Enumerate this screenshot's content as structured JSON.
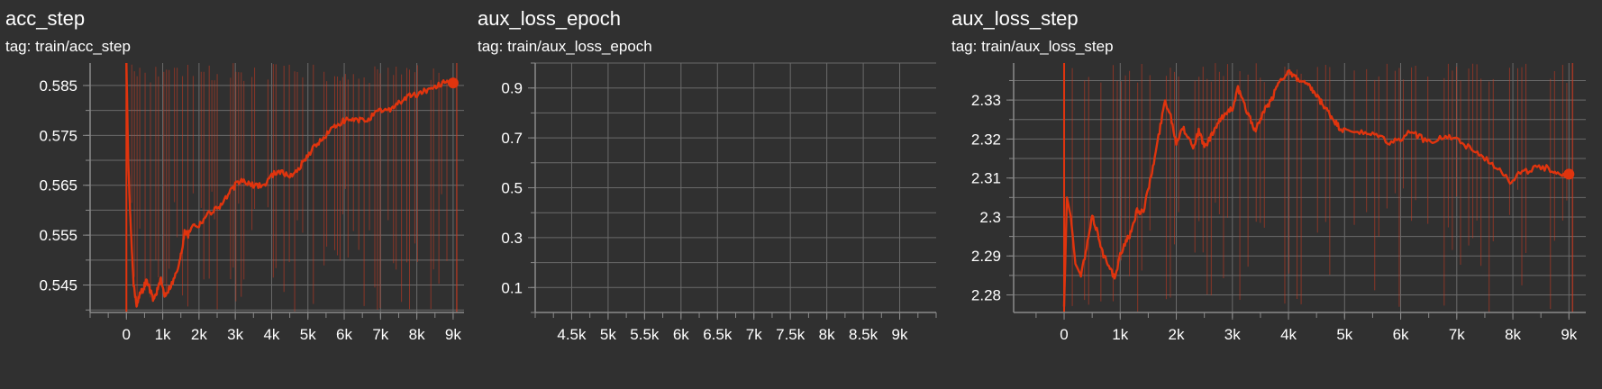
{
  "colors": {
    "background": "#303030",
    "grid": "#6a6a6a",
    "axis": "#8a8a8a",
    "line": "#e0340e",
    "raw": "#d03a20"
  },
  "charts": [
    {
      "title": "acc_step",
      "tag": "tag: train/acc_step"
    },
    {
      "title": "aux_loss_epoch",
      "tag": "tag: train/aux_loss_epoch"
    },
    {
      "title": "aux_loss_step",
      "tag": "tag: train/aux_loss_step"
    }
  ],
  "chart_data": [
    {
      "type": "line",
      "title": "acc_step",
      "tag": "train/acc_step",
      "xlim": [
        -1000,
        9300
      ],
      "ylim": [
        0.5395,
        0.5895
      ],
      "x_ticks": [
        0,
        1000,
        2000,
        3000,
        4000,
        5000,
        6000,
        7000,
        8000,
        9000
      ],
      "x_tick_labels": [
        "0",
        "1k",
        "2k",
        "3k",
        "4k",
        "5k",
        "6k",
        "7k",
        "8k",
        "9k"
      ],
      "y_ticks": [
        0.545,
        0.555,
        0.565,
        0.575,
        0.585
      ],
      "y_tick_labels": [
        "0.545",
        "0.555",
        "0.565",
        "0.575",
        "0.585"
      ],
      "series": [
        {
          "x": [
            0,
            50,
            100,
            150,
            200,
            280,
            350,
            450,
            550,
            650,
            750,
            850,
            950,
            1050,
            1150,
            1300,
            1450,
            1550,
            1600,
            1700,
            1800,
            2000,
            2200,
            2400,
            2600,
            2800,
            3000,
            3200,
            3400,
            3600,
            3800,
            4000,
            4200,
            4400,
            4600,
            4800,
            5000,
            5200,
            5400,
            5600,
            5800,
            6000,
            6200,
            6400,
            6600,
            6800,
            7000,
            7200,
            7400,
            7600,
            7800,
            8000,
            8200,
            8400,
            8600,
            8800,
            9000
          ],
          "y": [
            0.5895,
            0.57,
            0.56,
            0.552,
            0.545,
            0.541,
            0.543,
            0.544,
            0.546,
            0.544,
            0.542,
            0.544,
            0.546,
            0.543,
            0.544,
            0.546,
            0.549,
            0.553,
            0.556,
            0.555,
            0.557,
            0.557,
            0.559,
            0.56,
            0.561,
            0.563,
            0.565,
            0.566,
            0.565,
            0.565,
            0.565,
            0.567,
            0.568,
            0.567,
            0.567,
            0.569,
            0.571,
            0.573,
            0.574,
            0.576,
            0.577,
            0.578,
            0.578,
            0.578,
            0.578,
            0.579,
            0.58,
            0.58,
            0.581,
            0.582,
            0.583,
            0.583,
            0.584,
            0.584,
            0.585,
            0.586,
            0.5855
          ]
        }
      ]
    },
    {
      "type": "line",
      "title": "aux_loss_epoch",
      "tag": "train/aux_loss_epoch",
      "xlim": [
        4000,
        9500
      ],
      "ylim": [
        0.0,
        1.0
      ],
      "x_ticks": [
        4500,
        5000,
        5500,
        6000,
        6500,
        7000,
        7500,
        8000,
        8500,
        9000
      ],
      "x_tick_labels": [
        "4.5k",
        "5k",
        "5.5k",
        "6k",
        "6.5k",
        "7k",
        "7.5k",
        "8k",
        "8.5k",
        "9k"
      ],
      "y_ticks": [
        0.1,
        0.3,
        0.5,
        0.7,
        0.9
      ],
      "y_tick_labels": [
        "0.1",
        "0.3",
        "0.5",
        "0.7",
        "0.9"
      ],
      "series": []
    },
    {
      "type": "line",
      "title": "aux_loss_step",
      "tag": "train/aux_loss_step",
      "xlim": [
        -900,
        9300
      ],
      "ylim": [
        2.2755,
        2.3395
      ],
      "x_ticks": [
        0,
        1000,
        2000,
        3000,
        4000,
        5000,
        6000,
        7000,
        8000,
        9000
      ],
      "x_tick_labels": [
        "0",
        "1k",
        "2k",
        "3k",
        "4k",
        "5k",
        "6k",
        "7k",
        "8k",
        "9k"
      ],
      "y_ticks": [
        2.28,
        2.29,
        2.3,
        2.31,
        2.32,
        2.33
      ],
      "y_tick_labels": [
        "2.28",
        "2.29",
        "2.3",
        "2.31",
        "2.32",
        "2.33"
      ],
      "series": [
        {
          "x": [
            0,
            50,
            120,
            200,
            300,
            400,
            500,
            600,
            700,
            800,
            900,
            1000,
            1100,
            1200,
            1300,
            1400,
            1500,
            1600,
            1700,
            1800,
            1900,
            2000,
            2100,
            2200,
            2300,
            2400,
            2500,
            2600,
            2700,
            2800,
            2900,
            3000,
            3100,
            3200,
            3300,
            3400,
            3500,
            3600,
            3700,
            3800,
            3900,
            4000,
            4100,
            4200,
            4300,
            4400,
            4500,
            4600,
            4700,
            4800,
            4900,
            5000,
            5200,
            5400,
            5600,
            5800,
            6000,
            6200,
            6400,
            6600,
            6800,
            7000,
            7200,
            7400,
            7600,
            7800,
            7950,
            8100,
            8300,
            8500,
            8700,
            8850,
            9000
          ],
          "y": [
            2.277,
            2.305,
            2.3,
            2.288,
            2.285,
            2.292,
            2.3,
            2.296,
            2.29,
            2.288,
            2.284,
            2.29,
            2.294,
            2.296,
            2.302,
            2.301,
            2.307,
            2.314,
            2.322,
            2.33,
            2.326,
            2.319,
            2.323,
            2.321,
            2.318,
            2.322,
            2.318,
            2.32,
            2.323,
            2.325,
            2.327,
            2.328,
            2.333,
            2.329,
            2.326,
            2.322,
            2.325,
            2.328,
            2.33,
            2.334,
            2.336,
            2.337,
            2.336,
            2.335,
            2.334,
            2.333,
            2.331,
            2.329,
            2.327,
            2.325,
            2.323,
            2.322,
            2.322,
            2.321,
            2.321,
            2.319,
            2.32,
            2.322,
            2.32,
            2.319,
            2.321,
            2.32,
            2.318,
            2.316,
            2.314,
            2.312,
            2.309,
            2.311,
            2.312,
            2.313,
            2.312,
            2.311,
            2.311
          ]
        }
      ]
    }
  ]
}
